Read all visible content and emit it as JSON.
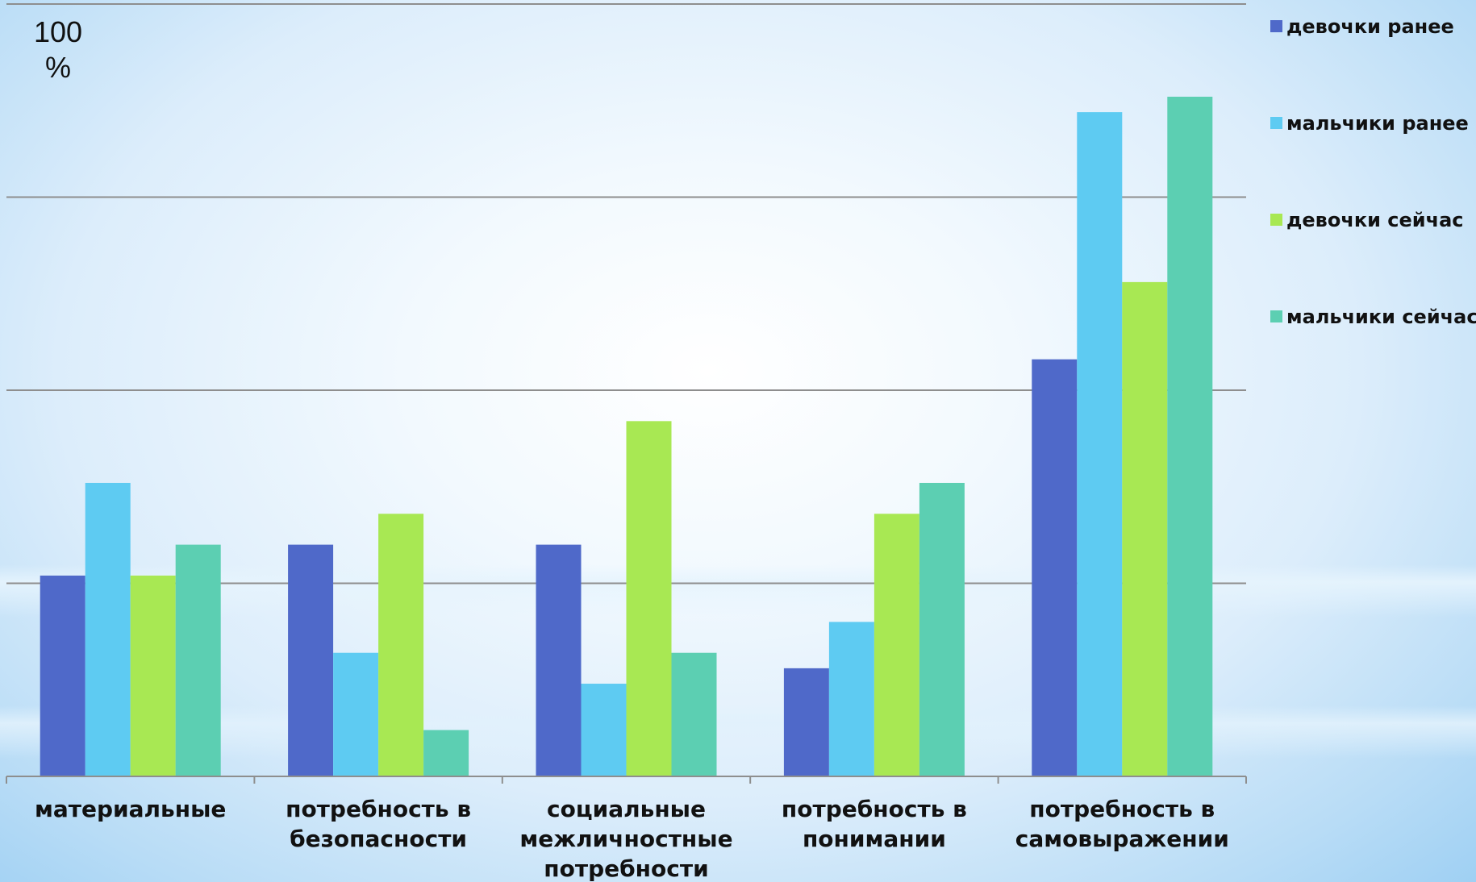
{
  "chart_data": {
    "type": "bar",
    "title": "",
    "ylabel": "100 %",
    "ylabel_lines": [
      "100",
      "%"
    ],
    "xlabel": "",
    "ylim": [
      0,
      100
    ],
    "grid": true,
    "gridlines_at": [
      0,
      25,
      50,
      75,
      100
    ],
    "legend_position": "right",
    "categories": [
      {
        "lines": [
          "материальные"
        ]
      },
      {
        "lines": [
          "потребность в",
          "безопасности"
        ]
      },
      {
        "lines": [
          "социальные",
          "межличностные",
          "потребности"
        ]
      },
      {
        "lines": [
          "потребность в",
          "понимании"
        ]
      },
      {
        "lines": [
          "потребность в",
          "самовыражении"
        ]
      }
    ],
    "series": [
      {
        "name": "девочки ранее",
        "color": "#4f69c9",
        "values": [
          26,
          30,
          30,
          14,
          54
        ]
      },
      {
        "name": "мальчики ранее",
        "color": "#5ecbf2",
        "values": [
          38,
          16,
          12,
          20,
          86
        ]
      },
      {
        "name": "девочки сейчас",
        "color": "#a8e853",
        "values": [
          26,
          34,
          46,
          34,
          64
        ]
      },
      {
        "name": "мальчики сейчас",
        "color": "#5ccfb2",
        "values": [
          30,
          6,
          16,
          38,
          88
        ]
      }
    ]
  }
}
